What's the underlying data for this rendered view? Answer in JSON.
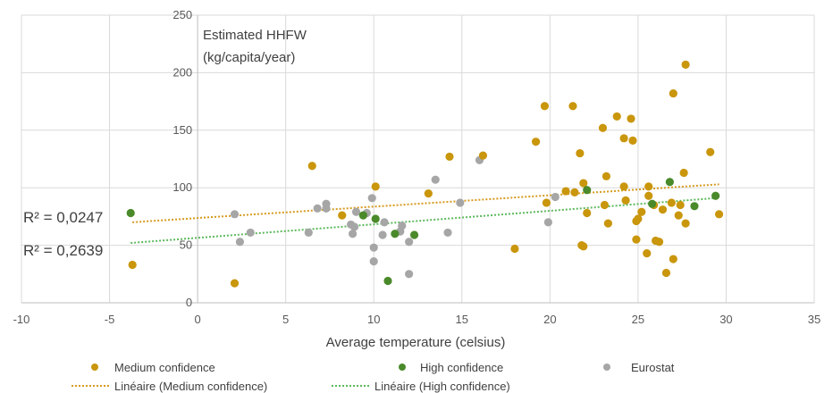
{
  "chart_data": {
    "type": "scatter",
    "annotation_lines": [
      "Estimated HHFW",
      "(kg/capita/year)"
    ],
    "xlabel": "Average temperature (celsius)",
    "ylabel": "",
    "xlim": [
      -10,
      35
    ],
    "ylim": [
      0,
      250
    ],
    "xticks": [
      -10,
      -5,
      0,
      5,
      10,
      15,
      20,
      25,
      30,
      35
    ],
    "yticks": [
      0,
      50,
      100,
      150,
      200,
      250
    ],
    "grid": true,
    "legend_position": "bottom",
    "series": [
      {
        "name": "Medium confidence",
        "color": "#c9960c",
        "points": [
          [
            -3.7,
            33
          ],
          [
            2.1,
            17
          ],
          [
            6.5,
            119
          ],
          [
            8.2,
            76
          ],
          [
            10.1,
            101
          ],
          [
            13.1,
            95
          ],
          [
            14.3,
            127
          ],
          [
            16.2,
            128
          ],
          [
            18.0,
            47
          ],
          [
            19.2,
            140
          ],
          [
            19.7,
            171
          ],
          [
            19.8,
            87
          ],
          [
            20.9,
            97
          ],
          [
            21.3,
            171
          ],
          [
            21.4,
            96
          ],
          [
            21.7,
            130
          ],
          [
            21.8,
            50
          ],
          [
            21.9,
            104
          ],
          [
            21.9,
            49
          ],
          [
            22.1,
            78
          ],
          [
            23.0,
            152
          ],
          [
            23.1,
            85
          ],
          [
            23.2,
            110
          ],
          [
            23.3,
            69
          ],
          [
            23.8,
            162
          ],
          [
            24.2,
            143
          ],
          [
            24.2,
            101
          ],
          [
            24.3,
            89
          ],
          [
            24.6,
            160
          ],
          [
            24.7,
            141
          ],
          [
            24.9,
            55
          ],
          [
            24.9,
            71
          ],
          [
            25.0,
            73
          ],
          [
            25.2,
            79
          ],
          [
            25.5,
            43
          ],
          [
            25.6,
            101
          ],
          [
            25.6,
            93
          ],
          [
            25.9,
            85
          ],
          [
            26.0,
            54
          ],
          [
            26.2,
            53
          ],
          [
            26.4,
            81
          ],
          [
            26.6,
            26
          ],
          [
            26.9,
            87
          ],
          [
            27.0,
            38
          ],
          [
            27.0,
            182
          ],
          [
            27.3,
            76
          ],
          [
            27.4,
            85
          ],
          [
            27.6,
            113
          ],
          [
            27.7,
            207
          ],
          [
            27.7,
            69
          ],
          [
            29.1,
            131
          ],
          [
            29.6,
            77
          ]
        ]
      },
      {
        "name": "High confidence",
        "color": "#4a8a2a",
        "points": [
          [
            -3.8,
            78
          ],
          [
            9.4,
            76
          ],
          [
            10.1,
            73
          ],
          [
            10.8,
            19
          ],
          [
            11.2,
            60
          ],
          [
            12.3,
            59
          ],
          [
            22.1,
            98
          ],
          [
            25.8,
            86
          ],
          [
            26.8,
            105
          ],
          [
            28.2,
            84
          ],
          [
            29.4,
            93
          ]
        ]
      },
      {
        "name": "Eurostat",
        "color": "#a6a6a6",
        "points": [
          [
            2.1,
            77
          ],
          [
            2.4,
            53
          ],
          [
            3.0,
            61
          ],
          [
            6.3,
            61
          ],
          [
            6.8,
            82
          ],
          [
            7.3,
            86
          ],
          [
            7.3,
            82
          ],
          [
            8.7,
            68
          ],
          [
            8.8,
            60
          ],
          [
            8.9,
            66
          ],
          [
            9.0,
            79
          ],
          [
            9.6,
            78
          ],
          [
            9.9,
            91
          ],
          [
            10.0,
            36
          ],
          [
            10.0,
            48
          ],
          [
            10.5,
            59
          ],
          [
            10.6,
            70
          ],
          [
            11.5,
            62
          ],
          [
            11.6,
            67
          ],
          [
            12.0,
            53
          ],
          [
            12.0,
            25
          ],
          [
            13.5,
            107
          ],
          [
            14.2,
            61
          ],
          [
            14.9,
            87
          ],
          [
            16.0,
            124
          ],
          [
            19.9,
            70
          ],
          [
            20.3,
            92
          ]
        ]
      }
    ],
    "trendlines": [
      {
        "name": "Linéaire (Medium confidence)",
        "color": "#d69a1e",
        "x_range": [
          -3.7,
          29.6
        ],
        "y_range": [
          70,
          103
        ],
        "r2_label": "R² = 0,0247"
      },
      {
        "name": "Linéaire (High confidence)",
        "color": "#5cb85c",
        "x_range": [
          -3.8,
          29.4
        ],
        "y_range": [
          52,
          91
        ],
        "r2_label": "R² = 0,2639"
      }
    ]
  }
}
